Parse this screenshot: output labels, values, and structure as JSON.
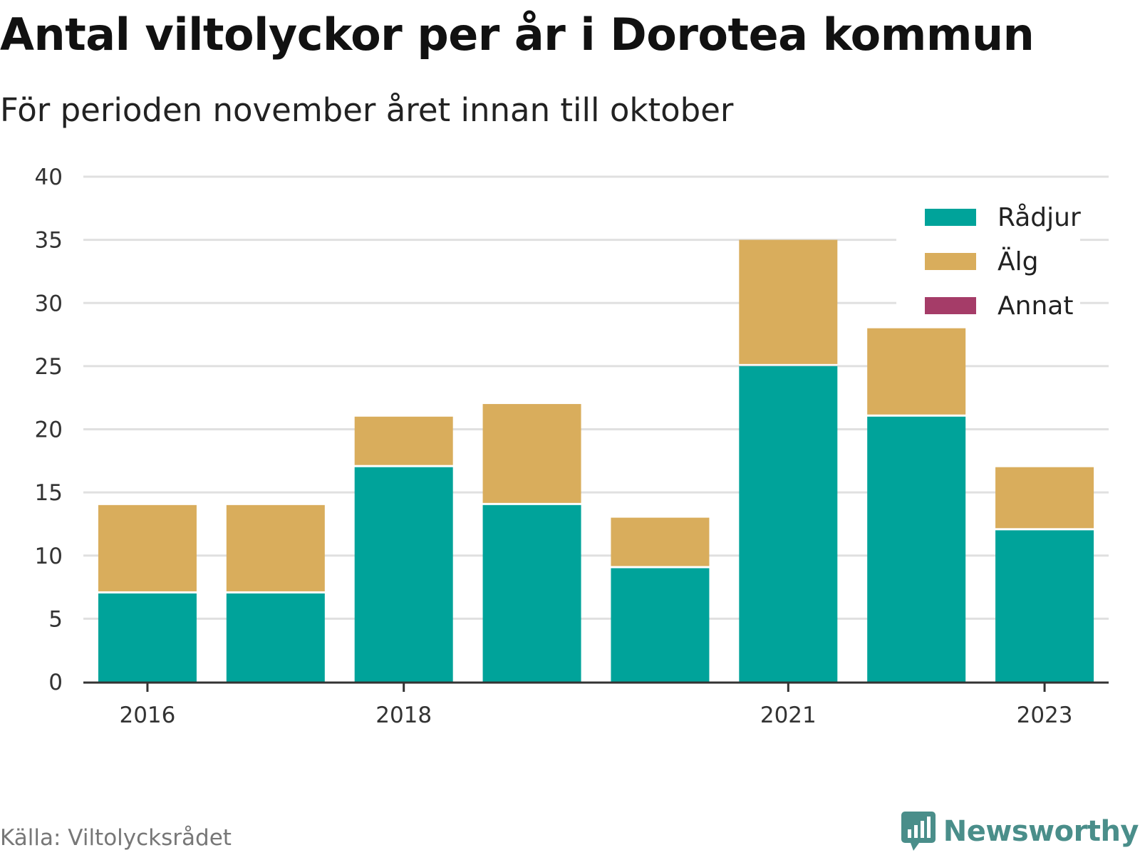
{
  "title": "Antal viltolyckor per år i Dorotea kommun",
  "subtitle": "För perioden november året innan till oktober",
  "source": "Källa: Viltolycksrådet",
  "brand": {
    "name": "Newsworthy",
    "icon": "newsworthy-logo-icon",
    "color": "#4a8e8a"
  },
  "chart_data": {
    "type": "bar",
    "stacked": true,
    "categories": [
      "2016",
      "2017",
      "2018",
      "2019",
      "2020",
      "2021",
      "2022",
      "2023"
    ],
    "x_tick_labels": [
      "2016",
      "2018",
      "2021",
      "2023"
    ],
    "series": [
      {
        "name": "Rådjur",
        "color": "#00a39a",
        "values": [
          7,
          7,
          17,
          14,
          9,
          25,
          21,
          12
        ]
      },
      {
        "name": "Älg",
        "color": "#d9ad5c",
        "values": [
          7,
          7,
          4,
          8,
          4,
          10,
          7,
          5
        ]
      },
      {
        "name": "Annat",
        "color": "#a53c68",
        "values": [
          0,
          0,
          0,
          0,
          0,
          0,
          0,
          0
        ]
      }
    ],
    "ylim": [
      0,
      40
    ],
    "y_ticks": [
      0,
      5,
      10,
      15,
      20,
      25,
      30,
      35,
      40
    ],
    "grid": true,
    "legend_position": "top-right"
  }
}
